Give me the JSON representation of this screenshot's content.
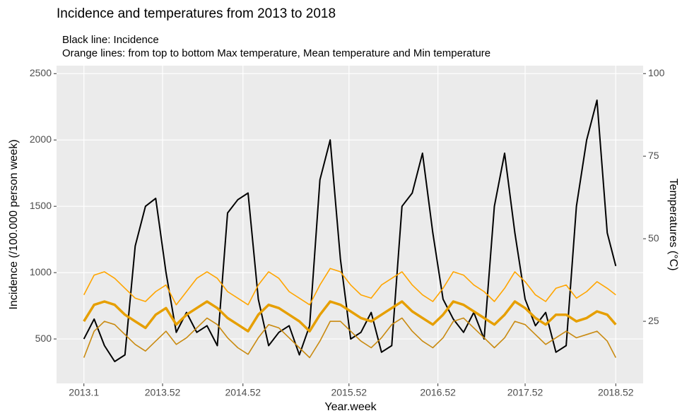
{
  "chart_data": {
    "type": "line",
    "title": "Incidence and temperatures from 2013 to 2018",
    "subtitle": [
      "Black line: Incidence",
      "Orange lines: from top to bottom Max temperature, Mean temperature and Min temperature"
    ],
    "x_label": "Year.week",
    "y_label": "Incidence (/100.000 person week)",
    "y2_label": "Temperatures (°C)",
    "x": [
      1,
      7,
      13,
      19,
      25,
      31,
      37,
      43,
      49,
      55,
      61,
      67,
      73,
      79,
      85,
      91,
      97,
      103,
      109,
      115,
      121,
      127,
      133,
      139,
      145,
      151,
      157,
      163,
      169,
      175,
      181,
      187,
      193,
      199,
      205,
      211,
      217,
      223,
      229,
      235,
      241,
      247,
      253,
      259,
      265,
      271,
      277,
      283,
      289,
      295,
      301,
      307,
      312
    ],
    "xlim": [
      -15,
      328
    ],
    "xticks": [
      {
        "value": 1,
        "label": "2013.1"
      },
      {
        "value": 47,
        "label": "2013.52"
      },
      {
        "value": 94,
        "label": "2014.52"
      },
      {
        "value": 156,
        "label": "2015.52"
      },
      {
        "value": 208,
        "label": "2016.52"
      },
      {
        "value": 259,
        "label": "2017.52"
      },
      {
        "value": 312,
        "label": "2018.52"
      }
    ],
    "ylim": [
      165,
      2560
    ],
    "yticks": [
      500,
      1000,
      1500,
      2000,
      2500
    ],
    "y2lim": [
      6.2,
      102.4
    ],
    "y2ticks": [
      25,
      50,
      75,
      100
    ],
    "grid": true,
    "series": [
      {
        "name": "Incidence",
        "color": "#000000",
        "values": [
          500,
          650,
          450,
          330,
          380,
          1200,
          1500,
          1560,
          1000,
          550,
          700,
          550,
          600,
          450,
          1450,
          1550,
          1600,
          800,
          450,
          550,
          600,
          380,
          600,
          1700,
          2000,
          1100,
          500,
          550,
          700,
          400,
          450,
          1500,
          1600,
          1900,
          1300,
          800,
          650,
          550,
          700,
          500,
          1500,
          1900,
          1300,
          800,
          600,
          700,
          400,
          450,
          1500,
          2000,
          2300,
          1300,
          1050
        ]
      },
      {
        "name": "Max temperature",
        "color": "#FFA500",
        "axis": "y2",
        "values": [
          33,
          39,
          40,
          38,
          35,
          32,
          31,
          34,
          36,
          30,
          34,
          38,
          40,
          38,
          34,
          32,
          30,
          36,
          40,
          38,
          34,
          32,
          30,
          36,
          41,
          40,
          36,
          33,
          32,
          36,
          38,
          40,
          36,
          33,
          31,
          35,
          40,
          39,
          36,
          34,
          31,
          35,
          40,
          37,
          33,
          31,
          35,
          36,
          32,
          34,
          37,
          35,
          33
        ]
      },
      {
        "name": "Mean temperature",
        "color": "#E69F00",
        "axis": "y2",
        "values": [
          25,
          30,
          31,
          30,
          27,
          25,
          23,
          27,
          29,
          24,
          27,
          29,
          31,
          29,
          26,
          24,
          22,
          27,
          30,
          29,
          27,
          25,
          22,
          27,
          31,
          30,
          28,
          26,
          25,
          27,
          29,
          31,
          28,
          26,
          24,
          27,
          31,
          30,
          28,
          26,
          24,
          27,
          31,
          29,
          26,
          24,
          27,
          27,
          25,
          26,
          28,
          27,
          24
        ]
      },
      {
        "name": "Min temperature",
        "color": "#C98A10",
        "axis": "y2",
        "values": [
          14,
          22,
          25,
          24,
          21,
          18,
          16,
          19,
          22,
          18,
          20,
          23,
          26,
          24,
          20,
          17,
          15,
          20,
          24,
          23,
          20,
          17,
          14,
          19,
          25,
          25,
          22,
          19,
          17,
          20,
          24,
          26,
          22,
          19,
          17,
          20,
          25,
          26,
          23,
          20,
          17,
          20,
          25,
          24,
          21,
          18,
          20,
          22,
          20,
          21,
          22,
          19,
          14
        ]
      }
    ]
  }
}
